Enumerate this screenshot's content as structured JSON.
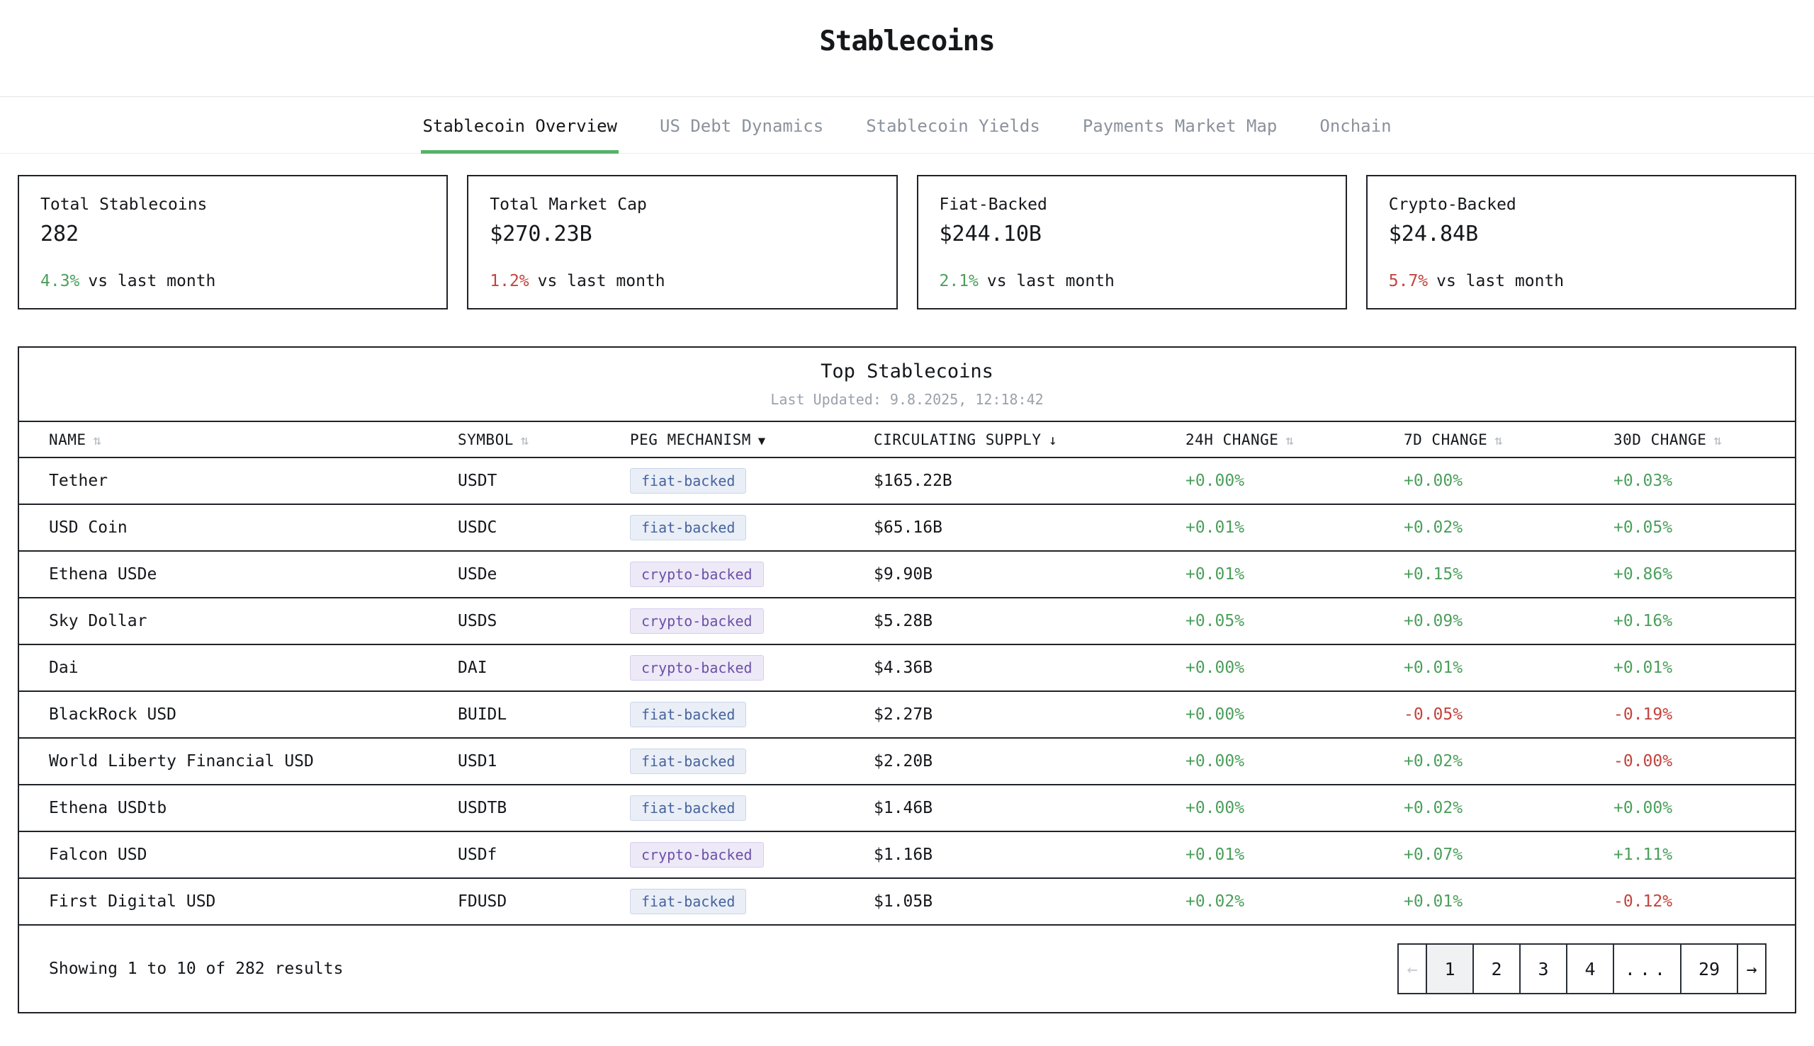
{
  "title": "Stablecoins",
  "tabs": [
    {
      "label": "Stablecoin Overview",
      "active": true
    },
    {
      "label": "US Debt Dynamics",
      "active": false
    },
    {
      "label": "Stablecoin Yields",
      "active": false
    },
    {
      "label": "Payments Market Map",
      "active": false
    },
    {
      "label": "Onchain",
      "active": false
    }
  ],
  "stat_cards": [
    {
      "label": "Total Stablecoins",
      "value": "282",
      "change": "4.3%",
      "direction": "up",
      "suffix": "vs last month"
    },
    {
      "label": "Total Market Cap",
      "value": "$270.23B",
      "change": "1.2%",
      "direction": "down",
      "suffix": "vs last month"
    },
    {
      "label": "Fiat-Backed",
      "value": "$244.10B",
      "change": "2.1%",
      "direction": "up",
      "suffix": "vs last month"
    },
    {
      "label": "Crypto-Backed",
      "value": "$24.84B",
      "change": "5.7%",
      "direction": "down",
      "suffix": "vs last month"
    }
  ],
  "icons": {
    "sort_both_icon": "⇅",
    "sort_desc_icon": "↓",
    "filter_down_icon": "▼",
    "prev_arrow_icon": "←",
    "next_arrow_icon": "→"
  },
  "table": {
    "title": "Top Stablecoins",
    "last_updated": "Last Updated: 9.8.2025, 12:18:42",
    "columns": [
      {
        "label": "NAME",
        "sort": "both"
      },
      {
        "label": "SYMBOL",
        "sort": "both"
      },
      {
        "label": "PEG MECHANISM",
        "sort": "filter"
      },
      {
        "label": "CIRCULATING SUPPLY",
        "sort": "desc"
      },
      {
        "label": "24H CHANGE",
        "sort": "both"
      },
      {
        "label": "7D CHANGE",
        "sort": "both"
      },
      {
        "label": "30D CHANGE",
        "sort": "both"
      }
    ],
    "rows": [
      {
        "name": "Tether",
        "symbol": "USDT",
        "peg": "fiat-backed",
        "supply": "$165.22B",
        "change_24h": "+0.00%",
        "change_7d": "+0.00%",
        "change_30d": "+0.03%"
      },
      {
        "name": "USD Coin",
        "symbol": "USDC",
        "peg": "fiat-backed",
        "supply": "$65.16B",
        "change_24h": "+0.01%",
        "change_7d": "+0.02%",
        "change_30d": "+0.05%"
      },
      {
        "name": "Ethena USDe",
        "symbol": "USDe",
        "peg": "crypto-backed",
        "supply": "$9.90B",
        "change_24h": "+0.01%",
        "change_7d": "+0.15%",
        "change_30d": "+0.86%"
      },
      {
        "name": "Sky Dollar",
        "symbol": "USDS",
        "peg": "crypto-backed",
        "supply": "$5.28B",
        "change_24h": "+0.05%",
        "change_7d": "+0.09%",
        "change_30d": "+0.16%"
      },
      {
        "name": "Dai",
        "symbol": "DAI",
        "peg": "crypto-backed",
        "supply": "$4.36B",
        "change_24h": "+0.00%",
        "change_7d": "+0.01%",
        "change_30d": "+0.01%"
      },
      {
        "name": "BlackRock USD",
        "symbol": "BUIDL",
        "peg": "fiat-backed",
        "supply": "$2.27B",
        "change_24h": "+0.00%",
        "change_7d": "-0.05%",
        "change_30d": "-0.19%"
      },
      {
        "name": "World Liberty Financial USD",
        "symbol": "USD1",
        "peg": "fiat-backed",
        "supply": "$2.20B",
        "change_24h": "+0.00%",
        "change_7d": "+0.02%",
        "change_30d": "-0.00%"
      },
      {
        "name": "Ethena USDtb",
        "symbol": "USDTB",
        "peg": "fiat-backed",
        "supply": "$1.46B",
        "change_24h": "+0.00%",
        "change_7d": "+0.02%",
        "change_30d": "+0.00%"
      },
      {
        "name": "Falcon USD",
        "symbol": "USDf",
        "peg": "crypto-backed",
        "supply": "$1.16B",
        "change_24h": "+0.01%",
        "change_7d": "+0.07%",
        "change_30d": "+1.11%"
      },
      {
        "name": "First Digital USD",
        "symbol": "FDUSD",
        "peg": "fiat-backed",
        "supply": "$1.05B",
        "change_24h": "+0.02%",
        "change_7d": "+0.01%",
        "change_30d": "-0.12%"
      }
    ],
    "footer": {
      "summary": "Showing 1 to 10 of 282 results",
      "pagination": {
        "pages": [
          "1",
          "2",
          "3",
          "4",
          "...",
          "29"
        ],
        "current": "1"
      }
    }
  },
  "colors": {
    "positive_green": "#4c9f5c",
    "negative_red": "#c2443d",
    "active_tab_underline": "#57b269",
    "fiat_badge_text": "#47639c",
    "fiat_badge_bg": "#e9eef7",
    "crypto_badge_text": "#6c50a8",
    "crypto_badge_bg": "#ede9f7"
  }
}
